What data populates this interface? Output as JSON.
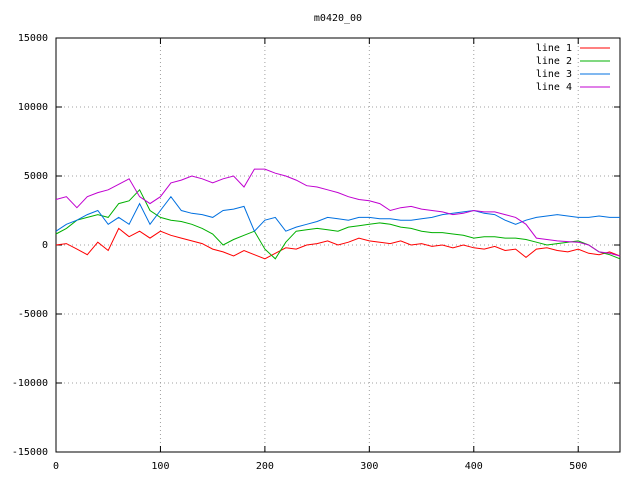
{
  "chart_data": {
    "type": "line",
    "title": "m0420_00",
    "x": [
      0,
      10,
      20,
      30,
      40,
      50,
      60,
      70,
      80,
      90,
      100,
      110,
      120,
      130,
      140,
      150,
      160,
      170,
      180,
      190,
      200,
      210,
      220,
      230,
      240,
      250,
      260,
      270,
      280,
      290,
      300,
      310,
      320,
      330,
      340,
      350,
      360,
      370,
      380,
      390,
      400,
      410,
      420,
      430,
      440,
      450,
      460,
      470,
      480,
      490,
      500,
      510,
      520,
      530,
      540
    ],
    "series": [
      {
        "name": "line 1",
        "color": "#ff0000",
        "values": [
          0,
          100,
          -300,
          -700,
          200,
          -400,
          1200,
          600,
          1000,
          500,
          1000,
          700,
          500,
          300,
          100,
          -300,
          -500,
          -800,
          -400,
          -700,
          -1000,
          -600,
          -200,
          -300,
          0,
          100,
          300,
          0,
          200,
          500,
          300,
          200,
          100,
          300,
          0,
          100,
          -100,
          0,
          -200,
          0,
          -200,
          -300,
          -100,
          -400,
          -300,
          -900,
          -300,
          -200,
          -400,
          -500,
          -300,
          -600,
          -700,
          -500,
          -800
        ]
      },
      {
        "name": "line 2",
        "color": "#00b000",
        "values": [
          800,
          1200,
          1800,
          2000,
          2200,
          2000,
          3000,
          3200,
          4000,
          2500,
          2000,
          1800,
          1700,
          1500,
          1200,
          800,
          0,
          400,
          700,
          1000,
          -300,
          -1000,
          200,
          1000,
          1100,
          1200,
          1100,
          1000,
          1300,
          1400,
          1500,
          1600,
          1500,
          1300,
          1200,
          1000,
          900,
          900,
          800,
          700,
          500,
          600,
          600,
          500,
          500,
          400,
          200,
          0,
          100,
          200,
          300,
          0,
          -500,
          -700,
          -1000
        ]
      },
      {
        "name": "line 3",
        "color": "#0070e0",
        "values": [
          1000,
          1500,
          1800,
          2200,
          2500,
          1500,
          2000,
          1500,
          3000,
          1500,
          2500,
          3500,
          2500,
          2300,
          2200,
          2000,
          2500,
          2600,
          2800,
          1000,
          1800,
          2000,
          1000,
          1300,
          1500,
          1700,
          2000,
          1900,
          1800,
          2000,
          2000,
          1900,
          1900,
          1800,
          1800,
          1900,
          2000,
          2200,
          2300,
          2400,
          2500,
          2300,
          2200,
          1800,
          1500,
          1800,
          2000,
          2100,
          2200,
          2100,
          2000,
          2000,
          2100,
          2000,
          2000
        ]
      },
      {
        "name": "line 4",
        "color": "#c000d0",
        "values": [
          3300,
          3500,
          2700,
          3500,
          3800,
          4000,
          4400,
          4800,
          3500,
          3000,
          3500,
          4500,
          4700,
          5000,
          4800,
          4500,
          4800,
          5000,
          4200,
          5500,
          5500,
          5200,
          5000,
          4700,
          4300,
          4200,
          4000,
          3800,
          3500,
          3300,
          3200,
          3000,
          2500,
          2700,
          2800,
          2600,
          2500,
          2400,
          2200,
          2300,
          2500,
          2400,
          2400,
          2200,
          2000,
          1500,
          500,
          400,
          300,
          250,
          200,
          0,
          -500,
          -600,
          -800
        ]
      }
    ],
    "xlim": [
      0,
      540
    ],
    "ylim": [
      -15000,
      15000
    ],
    "xticks": [
      0,
      100,
      200,
      300,
      400,
      500
    ],
    "yticks": [
      -15000,
      -10000,
      -5000,
      0,
      5000,
      10000,
      15000
    ],
    "grid": true,
    "legend": "top-right"
  }
}
